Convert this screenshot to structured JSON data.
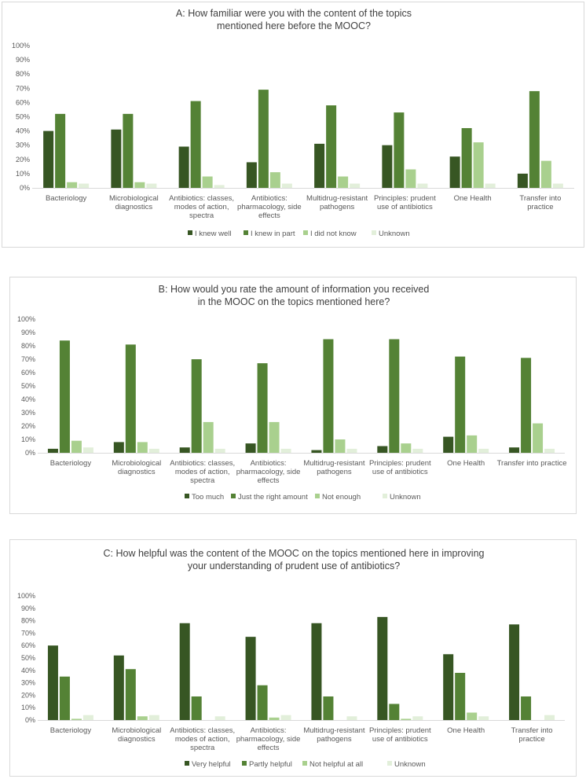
{
  "colors": {
    "s1": "#375623",
    "s2": "#548235",
    "s3": "#a9d08e",
    "s4": "#e2efda"
  },
  "chart_data": [
    {
      "type": "bar",
      "title_lines": [
        "A: How familiar were you with the content of the topics",
        "mentioned here before the MOOC?"
      ],
      "ylim": [
        0,
        100
      ],
      "yticks": [
        "0%",
        "10%",
        "20%",
        "30%",
        "40%",
        "50%",
        "60%",
        "70%",
        "80%",
        "90%",
        "100%"
      ],
      "categories": [
        [
          "Bacteriology"
        ],
        [
          "Microbiological",
          "diagnostics"
        ],
        [
          "Antibiotics: classes,",
          "modes of action,",
          "spectra"
        ],
        [
          "Antibiotics:",
          "pharmacology, side",
          "effects"
        ],
        [
          "Multidrug-resistant",
          "pathogens"
        ],
        [
          "Principles: prudent",
          "use of antibiotics"
        ],
        [
          "One Health"
        ],
        [
          "Transfer into",
          "practice"
        ]
      ],
      "series": [
        {
          "name": "I knew well",
          "values": [
            40,
            41,
            29,
            18,
            31,
            30,
            22,
            10
          ]
        },
        {
          "name": "I knew in part",
          "values": [
            52,
            52,
            61,
            69,
            58,
            53,
            42,
            68
          ]
        },
        {
          "name": "I did not know",
          "values": [
            4,
            4,
            8,
            11,
            8,
            13,
            32,
            19
          ]
        },
        {
          "name": "Unknown",
          "values": [
            3,
            3,
            2,
            3,
            3,
            3,
            3,
            3
          ]
        }
      ]
    },
    {
      "type": "bar",
      "title_lines": [
        "B: How would you rate the amount of information you received",
        "in the MOOC on the topics mentioned here?"
      ],
      "ylim": [
        0,
        100
      ],
      "yticks": [
        "0%",
        "10%",
        "20%",
        "30%",
        "40%",
        "50%",
        "60%",
        "70%",
        "80%",
        "90%",
        "100%"
      ],
      "categories": [
        [
          "Bacteriology"
        ],
        [
          "Microbiological",
          "diagnostics"
        ],
        [
          "Antibiotics: classes,",
          "modes of action,",
          "spectra"
        ],
        [
          "Antibiotics:",
          "pharmacology, side",
          "effects"
        ],
        [
          "Multidrug-resistant",
          "pathogens"
        ],
        [
          "Principles: prudent",
          "use of antibiotics"
        ],
        [
          "One Health"
        ],
        [
          "Transfer into practice"
        ]
      ],
      "series": [
        {
          "name": "Too much",
          "values": [
            3,
            8,
            4,
            7,
            2,
            5,
            12,
            4
          ]
        },
        {
          "name": "Just the right amount",
          "values": [
            84,
            81,
            70,
            67,
            85,
            85,
            72,
            71
          ]
        },
        {
          "name": "Not enough",
          "values": [
            9,
            8,
            23,
            23,
            10,
            7,
            13,
            22
          ]
        },
        {
          "name": "Unknown",
          "values": [
            4,
            3,
            3,
            3,
            3,
            3,
            3,
            3
          ]
        }
      ]
    },
    {
      "type": "bar",
      "title_lines": [
        "C: How helpful was the content of the MOOC on the topics mentioned here in improving",
        "your understanding of prudent use of antibiotics?"
      ],
      "ylim": [
        0,
        100
      ],
      "yticks": [
        "0%",
        "10%",
        "20%",
        "30%",
        "40%",
        "50%",
        "60%",
        "70%",
        "80%",
        "90%",
        "100%"
      ],
      "categories": [
        [
          "Bacteriology"
        ],
        [
          "Microbiological",
          "diagnostics"
        ],
        [
          "Antibiotics:  classes,",
          "modes of action,",
          "spectra"
        ],
        [
          "Antibiotics:",
          "pharmacology, side",
          "effects"
        ],
        [
          "Multidrug-resistant",
          "pathogens"
        ],
        [
          "Principles: prudent",
          "use of antibiotics"
        ],
        [
          "One Health"
        ],
        [
          "Transfer into",
          "practice"
        ]
      ],
      "series": [
        {
          "name": "Very helpful",
          "values": [
            60,
            52,
            78,
            67,
            78,
            83,
            53,
            77
          ]
        },
        {
          "name": "Partly helpful",
          "values": [
            35,
            41,
            19,
            28,
            19,
            13,
            38,
            19
          ]
        },
        {
          "name": "Not helpful at all",
          "values": [
            1,
            3,
            0,
            2,
            0,
            1,
            6,
            0
          ]
        },
        {
          "name": "Unknown",
          "values": [
            4,
            4,
            3,
            4,
            3,
            3,
            3,
            4
          ]
        }
      ]
    }
  ]
}
